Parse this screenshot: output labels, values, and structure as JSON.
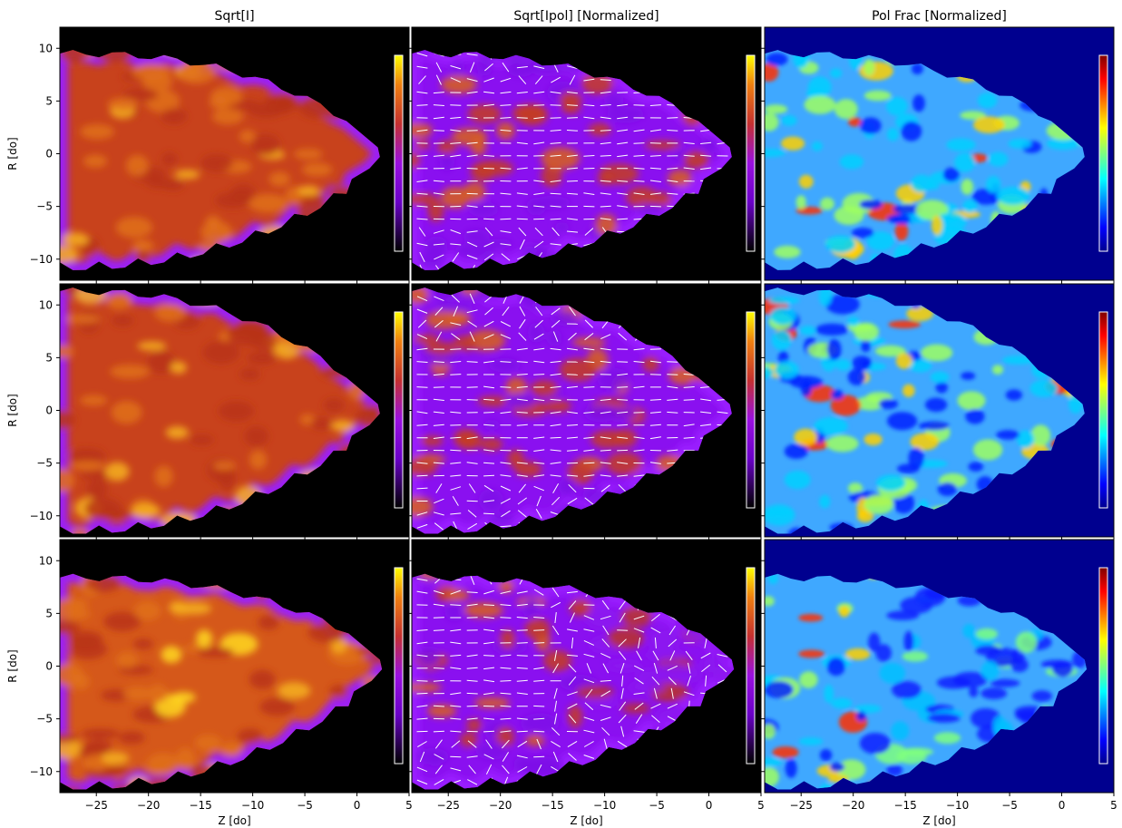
{
  "chart_data": {
    "type": "heatmap",
    "layout": {
      "rows": 3,
      "cols": 3
    },
    "column_titles": [
      "Sqrt[I]",
      "Sqrt[Ipol] [Normalized]",
      "Pol Frac [Normalized]"
    ],
    "xlabel": "Z [do]",
    "ylabel": "R [do]",
    "xlim": [
      -28.5,
      5
    ],
    "ylim": [
      -12,
      12
    ],
    "xticks": [
      -25,
      -20,
      -15,
      -10,
      -5,
      0,
      5
    ],
    "yticks": [
      -10,
      -5,
      0,
      5,
      10
    ],
    "colormaps": [
      "gnuplot",
      "gnuplot",
      "jet"
    ],
    "colors": {
      "background_intensity": "#000000",
      "background_polfrac": "#00008f",
      "gnuplot_low": "#8a00ff",
      "gnuplot_mid": "#c8401a",
      "gnuplot_high": "#ffe000",
      "vector_color": "#ffffff"
    },
    "colorbar_ticks": "none",
    "jet_tip_z": 2,
    "rows": [
      {
        "left_extent_z": -28.5,
        "tip_z": 2.0,
        "top_r": 9.5,
        "bottom_r": -10.8
      },
      {
        "left_extent_z": -28.5,
        "tip_z": 2.0,
        "top_r": 11.3,
        "bottom_r": -11.5
      },
      {
        "left_extent_z": -28.5,
        "tip_z": 2.2,
        "top_r": 8.4,
        "bottom_r": -11.5
      }
    ]
  }
}
